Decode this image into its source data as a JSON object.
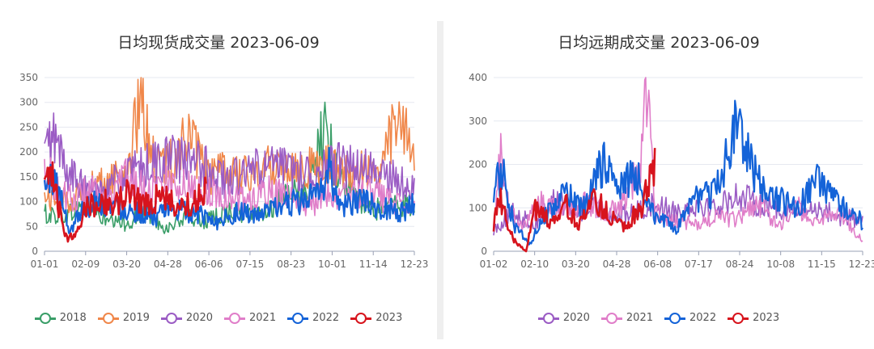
{
  "chart_data": [
    {
      "type": "line",
      "title": "日均现货成交量 2023-06-09",
      "xlabel": "",
      "ylabel": "",
      "ylim": [
        0,
        350
      ],
      "yticks": [
        0,
        50,
        100,
        150,
        200,
        250,
        300,
        350
      ],
      "xticks": [
        "01-01",
        "02-09",
        "03-20",
        "04-28",
        "06-06",
        "07-15",
        "08-23",
        "10-01",
        "11-14",
        "12-23"
      ],
      "grid": true,
      "legend_position": "bottom",
      "series": [
        {
          "name": "2018",
          "color": "#3a9e68",
          "days": 365,
          "anchors": [
            [
              0,
              75
            ],
            [
              20,
              70
            ],
            [
              40,
              95
            ],
            [
              60,
              60
            ],
            [
              80,
              55
            ],
            [
              100,
              80
            ],
            [
              120,
              45
            ],
            [
              140,
              70
            ],
            [
              160,
              60
            ],
            [
              180,
              80
            ],
            [
              200,
              75
            ],
            [
              220,
              85
            ],
            [
              240,
              110
            ],
            [
              260,
              120
            ],
            [
              275,
              250
            ],
            [
              290,
              150
            ],
            [
              300,
              125
            ],
            [
              320,
              80
            ],
            [
              340,
              95
            ],
            [
              365,
              90
            ]
          ]
        },
        {
          "name": "2019",
          "color": "#f0874a",
          "days": 365,
          "anchors": [
            [
              0,
              110
            ],
            [
              20,
              100
            ],
            [
              40,
              120
            ],
            [
              60,
              140
            ],
            [
              80,
              160
            ],
            [
              95,
              300
            ],
            [
              110,
              170
            ],
            [
              125,
              180
            ],
            [
              140,
              240
            ],
            [
              160,
              150
            ],
            [
              180,
              160
            ],
            [
              200,
              150
            ],
            [
              220,
              170
            ],
            [
              240,
              180
            ],
            [
              260,
              170
            ],
            [
              280,
              170
            ],
            [
              300,
              160
            ],
            [
              330,
              160
            ],
            [
              345,
              260
            ],
            [
              365,
              210
            ]
          ]
        },
        {
          "name": "2020",
          "color": "#9b5cc4",
          "days": 365,
          "anchors": [
            [
              0,
              200
            ],
            [
              10,
              230
            ],
            [
              20,
              170
            ],
            [
              40,
              120
            ],
            [
              60,
              130
            ],
            [
              80,
              150
            ],
            [
              100,
              170
            ],
            [
              120,
              190
            ],
            [
              140,
              180
            ],
            [
              160,
              170
            ],
            [
              180,
              140
            ],
            [
              200,
              160
            ],
            [
              220,
              170
            ],
            [
              240,
              165
            ],
            [
              260,
              160
            ],
            [
              280,
              175
            ],
            [
              300,
              170
            ],
            [
              320,
              160
            ],
            [
              340,
              150
            ],
            [
              365,
              120
            ]
          ]
        },
        {
          "name": "2021",
          "color": "#e07ec9",
          "days": 365,
          "anchors": [
            [
              0,
              170
            ],
            [
              15,
              120
            ],
            [
              30,
              100
            ],
            [
              45,
              130
            ],
            [
              60,
              90
            ],
            [
              80,
              150
            ],
            [
              100,
              120
            ],
            [
              120,
              140
            ],
            [
              140,
              130
            ],
            [
              160,
              120
            ],
            [
              180,
              110
            ],
            [
              200,
              100
            ],
            [
              220,
              120
            ],
            [
              240,
              110
            ],
            [
              260,
              90
            ],
            [
              280,
              120
            ],
            [
              300,
              110
            ],
            [
              320,
              120
            ],
            [
              340,
              100
            ],
            [
              365,
              90
            ]
          ]
        },
        {
          "name": "2022",
          "color": "#1463d8",
          "days": 365,
          "anchors": [
            [
              0,
              130
            ],
            [
              10,
              150
            ],
            [
              25,
              40
            ],
            [
              35,
              80
            ],
            [
              50,
              100
            ],
            [
              70,
              90
            ],
            [
              90,
              80
            ],
            [
              110,
              70
            ],
            [
              130,
              85
            ],
            [
              150,
              75
            ],
            [
              170,
              60
            ],
            [
              190,
              80
            ],
            [
              210,
              70
            ],
            [
              230,
              90
            ],
            [
              250,
              100
            ],
            [
              270,
              110
            ],
            [
              280,
              170
            ],
            [
              290,
              90
            ],
            [
              310,
              100
            ],
            [
              330,
              90
            ],
            [
              350,
              80
            ],
            [
              365,
              95
            ]
          ]
        },
        {
          "name": "2023",
          "color": "#d7141d",
          "days": 160,
          "anchors": [
            [
              0,
              130
            ],
            [
              8,
              145
            ],
            [
              16,
              70
            ],
            [
              22,
              25
            ],
            [
              32,
              40
            ],
            [
              40,
              90
            ],
            [
              55,
              100
            ],
            [
              70,
              95
            ],
            [
              85,
              120
            ],
            [
              100,
              95
            ],
            [
              115,
              110
            ],
            [
              130,
              90
            ],
            [
              145,
              95
            ],
            [
              160,
              130
            ]
          ]
        }
      ]
    },
    {
      "type": "line",
      "title": "日均远期成交量 2023-06-09",
      "xlabel": "",
      "ylabel": "",
      "ylim": [
        0,
        400
      ],
      "yticks": [
        0,
        100,
        200,
        300,
        400
      ],
      "xticks": [
        "01-02",
        "02-10",
        "03-20",
        "04-28",
        "06-08",
        "07-17",
        "08-24",
        "10-08",
        "11-15",
        "12-23"
      ],
      "grid": true,
      "legend_position": "bottom",
      "series": [
        {
          "name": "2020",
          "color": "#9b5cc4",
          "days": 365,
          "anchors": [
            [
              0,
              50
            ],
            [
              20,
              90
            ],
            [
              40,
              60
            ],
            [
              60,
              120
            ],
            [
              80,
              90
            ],
            [
              100,
              100
            ],
            [
              120,
              80
            ],
            [
              140,
              90
            ],
            [
              160,
              110
            ],
            [
              180,
              90
            ],
            [
              200,
              110
            ],
            [
              220,
              100
            ],
            [
              240,
              130
            ],
            [
              260,
              110
            ],
            [
              280,
              100
            ],
            [
              300,
              90
            ],
            [
              320,
              100
            ],
            [
              340,
              80
            ],
            [
              365,
              70
            ]
          ]
        },
        {
          "name": "2021",
          "color": "#e07ec9",
          "days": 365,
          "anchors": [
            [
              0,
              80
            ],
            [
              8,
              240
            ],
            [
              16,
              90
            ],
            [
              30,
              60
            ],
            [
              50,
              120
            ],
            [
              70,
              90
            ],
            [
              90,
              110
            ],
            [
              110,
              90
            ],
            [
              130,
              120
            ],
            [
              145,
              200
            ],
            [
              150,
              385
            ],
            [
              160,
              90
            ],
            [
              180,
              70
            ],
            [
              200,
              60
            ],
            [
              220,
              80
            ],
            [
              240,
              70
            ],
            [
              260,
              110
            ],
            [
              280,
              60
            ],
            [
              300,
              100
            ],
            [
              320,
              70
            ],
            [
              340,
              90
            ],
            [
              365,
              20
            ]
          ]
        },
        {
          "name": "2022",
          "color": "#1463d8",
          "days": 365,
          "anchors": [
            [
              0,
              150
            ],
            [
              10,
              180
            ],
            [
              20,
              60
            ],
            [
              35,
              15
            ],
            [
              50,
              80
            ],
            [
              70,
              130
            ],
            [
              90,
              100
            ],
            [
              110,
              220
            ],
            [
              120,
              140
            ],
            [
              140,
              180
            ],
            [
              160,
              80
            ],
            [
              180,
              50
            ],
            [
              200,
              120
            ],
            [
              220,
              140
            ],
            [
              240,
              300
            ],
            [
              260,
              160
            ],
            [
              280,
              120
            ],
            [
              300,
              100
            ],
            [
              320,
              160
            ],
            [
              340,
              110
            ],
            [
              360,
              80
            ],
            [
              365,
              50
            ]
          ]
        },
        {
          "name": "2023",
          "color": "#d7141d",
          "days": 160,
          "anchors": [
            [
              0,
              60
            ],
            [
              6,
              140
            ],
            [
              14,
              50
            ],
            [
              22,
              20
            ],
            [
              32,
              0
            ],
            [
              40,
              100
            ],
            [
              55,
              70
            ],
            [
              70,
              110
            ],
            [
              85,
              60
            ],
            [
              100,
              120
            ],
            [
              115,
              80
            ],
            [
              130,
              60
            ],
            [
              145,
              100
            ],
            [
              160,
              200
            ]
          ]
        }
      ]
    }
  ]
}
